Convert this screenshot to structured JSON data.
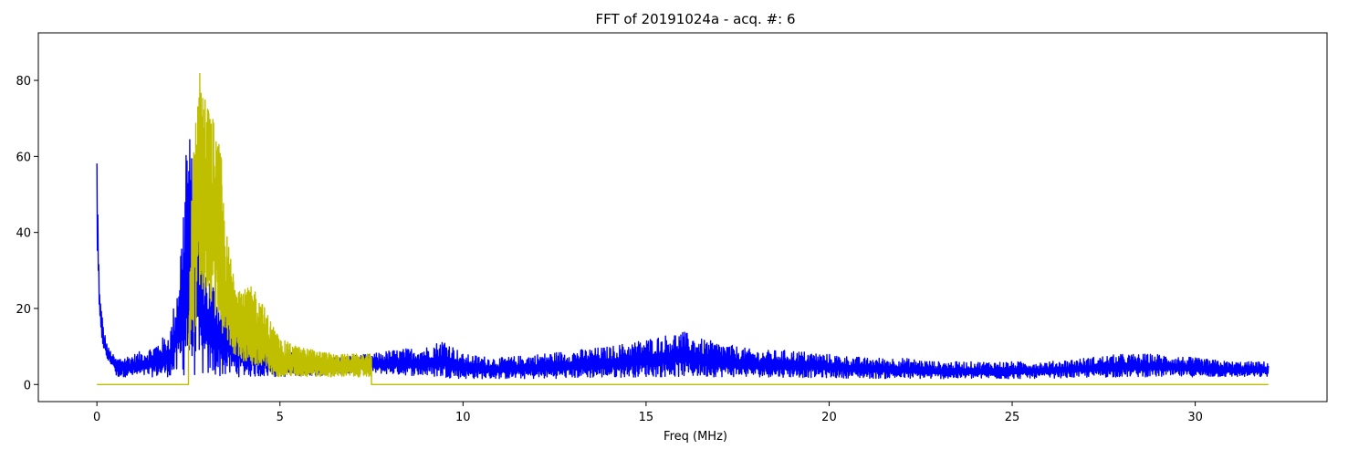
{
  "chart_data": {
    "type": "line",
    "title": "FFT of 20191024a - acq. #: 6",
    "xlabel": "Freq (MHz)",
    "ylabel": "",
    "xlim": [
      -1.6,
      33.6
    ],
    "ylim": [
      -4.5,
      92.5
    ],
    "x_ticks": [
      0,
      5,
      10,
      15,
      20,
      25,
      30
    ],
    "y_ticks": [
      0,
      20,
      40,
      60,
      80
    ],
    "grid": false,
    "legend": "none",
    "series": [
      {
        "color": "#0000ff",
        "style": "noisy spectrum",
        "points": [
          [
            0.0,
            62
          ],
          [
            0.05,
            33
          ],
          [
            0.1,
            22
          ],
          [
            0.2,
            14
          ],
          [
            0.3,
            10
          ],
          [
            0.5,
            7
          ],
          [
            1.0,
            8
          ],
          [
            1.5,
            10
          ],
          [
            2.0,
            14
          ],
          [
            2.2,
            28
          ],
          [
            2.35,
            45
          ],
          [
            2.45,
            73
          ],
          [
            3.0,
            30
          ],
          [
            4.0,
            15
          ],
          [
            5.0,
            9
          ],
          [
            6.0,
            7
          ],
          [
            7.5,
            8
          ],
          [
            8.0,
            9
          ],
          [
            9.0,
            10
          ],
          [
            9.5,
            12
          ],
          [
            10.0,
            8
          ],
          [
            11.0,
            7
          ],
          [
            12.0,
            8
          ],
          [
            13.0,
            9
          ],
          [
            14.0,
            10
          ],
          [
            15.0,
            12
          ],
          [
            15.5,
            13
          ],
          [
            16.0,
            14
          ],
          [
            16.5,
            12
          ],
          [
            17.0,
            11
          ],
          [
            18.0,
            9
          ],
          [
            19.0,
            9
          ],
          [
            20.0,
            8
          ],
          [
            21.0,
            7
          ],
          [
            22.0,
            7
          ],
          [
            23.0,
            6
          ],
          [
            24.0,
            6
          ],
          [
            25.0,
            6
          ],
          [
            26.0,
            6
          ],
          [
            27.0,
            7
          ],
          [
            28.0,
            8
          ],
          [
            29.0,
            8
          ],
          [
            30.0,
            7
          ],
          [
            31.0,
            6
          ],
          [
            32.0,
            6
          ]
        ],
        "floor": [
          [
            0.5,
            2
          ],
          [
            2.0,
            2
          ],
          [
            5.0,
            2
          ],
          [
            7.5,
            3
          ],
          [
            10.0,
            1.5
          ],
          [
            12.0,
            1.5
          ],
          [
            15.0,
            2
          ],
          [
            18.0,
            2
          ],
          [
            22.0,
            1.5
          ],
          [
            25.0,
            1.5
          ],
          [
            28.0,
            2
          ],
          [
            32.0,
            2
          ]
        ]
      },
      {
        "color": "#bfbf00",
        "style": "windowed spectrum",
        "points": [
          [
            0.0,
            0
          ],
          [
            2.5,
            0
          ],
          [
            2.5,
            10
          ],
          [
            2.6,
            55
          ],
          [
            2.7,
            78
          ],
          [
            2.85,
            85
          ],
          [
            3.0,
            75
          ],
          [
            3.2,
            70
          ],
          [
            3.4,
            60
          ],
          [
            3.5,
            42
          ],
          [
            3.7,
            32
          ],
          [
            4.0,
            25
          ],
          [
            4.3,
            26
          ],
          [
            4.5,
            22
          ],
          [
            4.7,
            18
          ],
          [
            5.0,
            12
          ],
          [
            5.5,
            10
          ],
          [
            6.0,
            9
          ],
          [
            6.5,
            8
          ],
          [
            7.0,
            8
          ],
          [
            7.5,
            8
          ],
          [
            7.5,
            0
          ],
          [
            32.0,
            0
          ]
        ],
        "floor": [
          [
            2.5,
            8
          ],
          [
            3.0,
            25
          ],
          [
            3.5,
            10
          ],
          [
            4.0,
            6
          ],
          [
            4.5,
            3
          ],
          [
            5.0,
            2
          ],
          [
            6.0,
            2
          ],
          [
            7.0,
            2
          ],
          [
            7.5,
            2
          ]
        ]
      }
    ]
  }
}
